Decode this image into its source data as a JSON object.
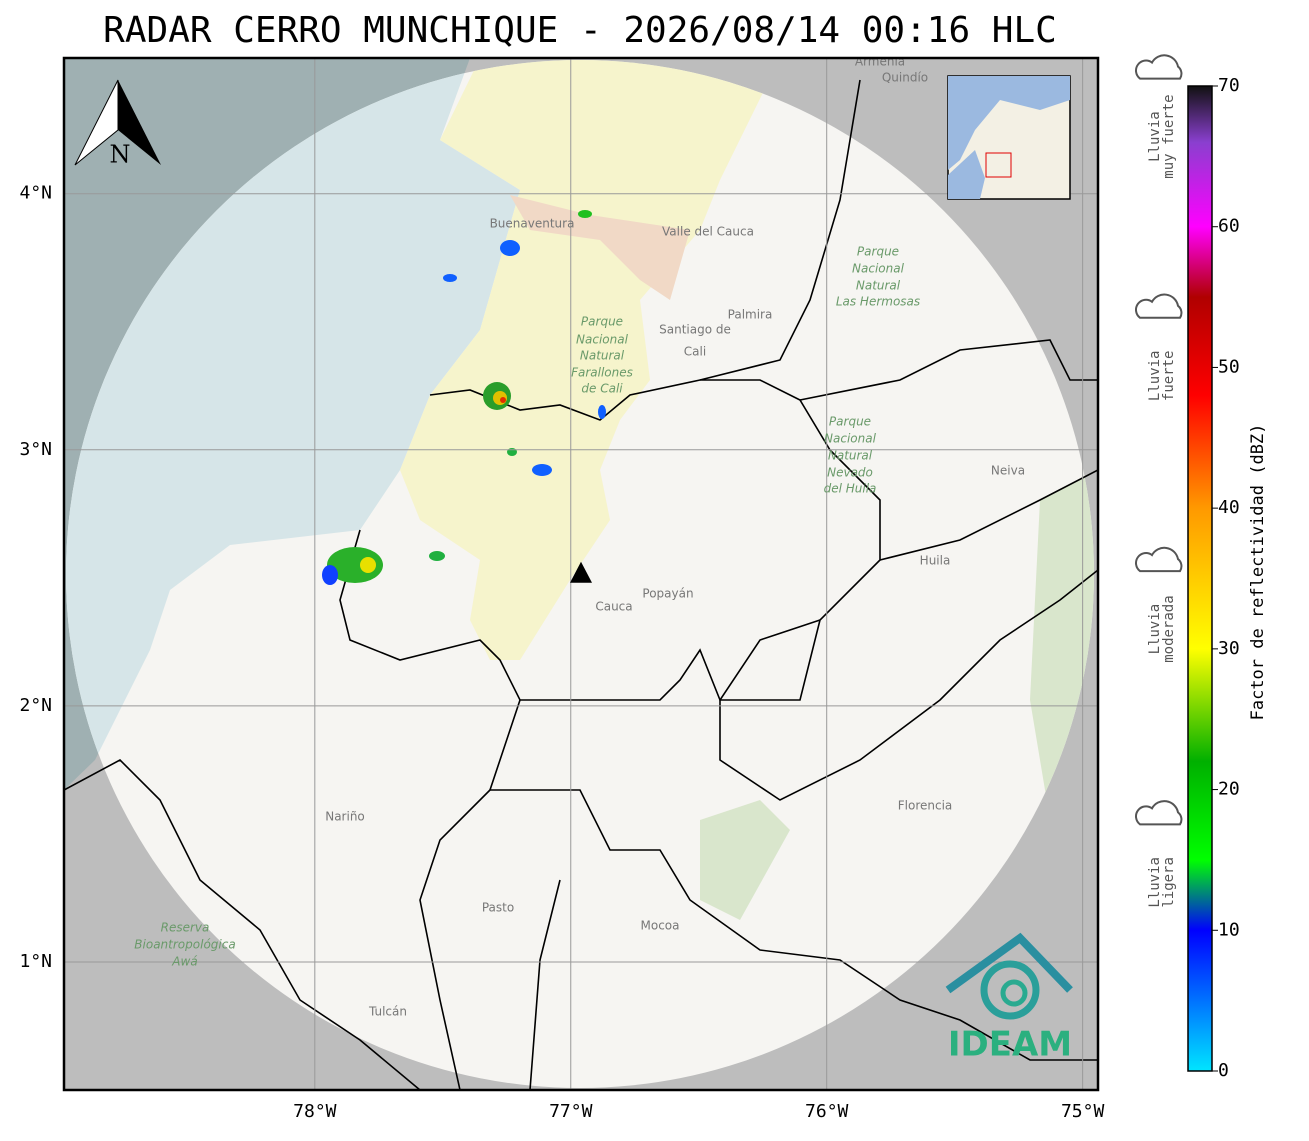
{
  "map": {
    "title": "RADAR CERRO MUNCHIQUE - 2026/08/14 00:16 HLC",
    "lonlim": [
      -78.98,
      -74.94
    ],
    "latlim": [
      0.5,
      4.53
    ],
    "lonticks": [
      {
        "value": -78,
        "label": "78°W"
      },
      {
        "value": -77,
        "label": "77°W"
      },
      {
        "value": -76,
        "label": "76°W"
      },
      {
        "value": -75,
        "label": "75°W"
      }
    ],
    "latticks": [
      {
        "value": 1,
        "label": "1°N"
      },
      {
        "value": 2,
        "label": "2°N"
      },
      {
        "value": 3,
        "label": "3°N"
      },
      {
        "value": 4,
        "label": "4°N"
      }
    ],
    "grid": true,
    "radar_site": {
      "lon": -76.96,
      "lat": 2.52
    },
    "north_label": "N",
    "places": [
      "Santiago de",
      "Cali",
      "Palmira",
      "Popayán",
      "Cauca",
      "Huila",
      "Neiva",
      "Nariño",
      "Pasto",
      "Mocoa",
      "Florencia",
      "Tulcán",
      "Buenaventura",
      "Valle del Cauca",
      "Armenia",
      "Quindío",
      "Parque",
      "Nacional",
      "Natural",
      "Farallones",
      "de Cali",
      "Parque",
      "Nacional",
      "Natural",
      "Las Hermosas",
      "Parque",
      "Nacional",
      "Natural",
      "Nevado",
      "del Huila",
      "Reserva",
      "Bioantropológica",
      "Awá"
    ],
    "logo": "IDEAM"
  },
  "colorbar": {
    "label": "Factor de reflectividad (dBZ)",
    "lim": [
      0,
      70
    ],
    "ticks": [
      0,
      10,
      20,
      30,
      40,
      50,
      60,
      70
    ],
    "gradient": [
      {
        "value": 0,
        "color": "#00e5ff"
      },
      {
        "value": 10,
        "color": "#0000ff"
      },
      {
        "value": 15,
        "color": "#00ff00"
      },
      {
        "value": 22,
        "color": "#00b000"
      },
      {
        "value": 30,
        "color": "#ffff00"
      },
      {
        "value": 40,
        "color": "#ff9900"
      },
      {
        "value": 48,
        "color": "#ff0000"
      },
      {
        "value": 55,
        "color": "#b00000"
      },
      {
        "value": 60,
        "color": "#ff00ff"
      },
      {
        "value": 66,
        "color": "#8a3fcf"
      },
      {
        "value": 70,
        "color": "#111111"
      }
    ],
    "categories": [
      {
        "lines": [
          "Lluvia",
          "muy fuerte"
        ],
        "value": 62
      },
      {
        "lines": [
          "Lluvia",
          "fuerte"
        ],
        "value": 45
      },
      {
        "lines": [
          "Lluvia",
          "moderada"
        ],
        "value": 27
      },
      {
        "lines": [
          "Lluvia",
          "ligera"
        ],
        "value": 9
      }
    ]
  }
}
